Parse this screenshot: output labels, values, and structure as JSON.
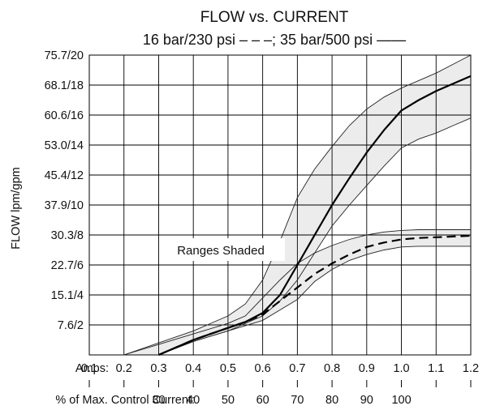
{
  "chart_data": {
    "type": "line",
    "title": "FLOW vs. CURRENT",
    "subtitle": "16 bar/230 psi – – –;  35 bar/500 psi ——",
    "ylabel": "FLOW lpm/gpm",
    "y_tick_labels": [
      "7.6/2",
      "15.1/4",
      "22.7/6",
      "30.3/8",
      "37.9/10",
      "45.4/12",
      "53.0/14",
      "60.6/16",
      "68.1/18",
      "75.7/20"
    ],
    "y_tick_values_gpm": [
      2,
      4,
      6,
      8,
      10,
      12,
      14,
      16,
      18,
      20
    ],
    "ylim": [
      0,
      20
    ],
    "xlim": [
      0.1,
      1.2
    ],
    "x_label_amps": "Amps:",
    "x_tick_labels_amps": [
      "0.1",
      "0.2",
      "0.3",
      "0.4",
      "0.5",
      "0.6",
      "0.7",
      "0.8",
      "0.9",
      "1.0",
      "1.1",
      "1.2"
    ],
    "x_tick_values_amps": [
      0.1,
      0.2,
      0.3,
      0.4,
      0.5,
      0.6,
      0.7,
      0.8,
      0.9,
      1.0,
      1.1,
      1.2
    ],
    "x_label_percent": "% of Max. Control Current:",
    "x_tick_labels_percent": [
      "30",
      "40",
      "50",
      "60",
      "70",
      "80",
      "90",
      "100"
    ],
    "x_tick_values_percent_amps": [
      0.3,
      0.4,
      0.5,
      0.6,
      0.7,
      0.8,
      0.9,
      1.0
    ],
    "grid": true,
    "annotation": "Ranges Shaded",
    "series": [
      {
        "name": "35 bar/500 psi",
        "line_style": "solid",
        "x": [
          0.3,
          0.35,
          0.4,
          0.45,
          0.5,
          0.55,
          0.6,
          0.65,
          0.7,
          0.75,
          0.8,
          0.85,
          0.9,
          0.95,
          1.0,
          1.05,
          1.1,
          1.15,
          1.2
        ],
        "y": [
          0,
          0.5,
          1.0,
          1.4,
          1.8,
          2.2,
          2.8,
          4.0,
          6.0,
          8.0,
          10.0,
          11.8,
          13.5,
          15.0,
          16.3,
          17.0,
          17.6,
          18.1,
          18.6
        ],
        "range_upper": {
          "x": [
            0.2,
            0.3,
            0.4,
            0.5,
            0.55,
            0.6,
            0.65,
            0.7,
            0.75,
            0.8,
            0.85,
            0.9,
            0.95,
            1.0,
            1.05,
            1.1,
            1.15,
            1.2
          ],
          "y": [
            0,
            0.8,
            1.6,
            2.6,
            3.4,
            5.0,
            7.6,
            10.5,
            12.4,
            13.9,
            15.3,
            16.4,
            17.2,
            17.8,
            18.3,
            18.8,
            19.4,
            20.0
          ]
        },
        "range_lower": {
          "x": [
            0.3,
            0.4,
            0.5,
            0.6,
            0.65,
            0.7,
            0.75,
            0.8,
            0.85,
            0.9,
            0.95,
            1.0,
            1.05,
            1.1,
            1.15,
            1.2
          ],
          "y": [
            0,
            0.9,
            1.6,
            2.6,
            3.6,
            5.0,
            6.8,
            8.6,
            10.0,
            11.3,
            12.6,
            13.8,
            14.4,
            14.8,
            15.3,
            15.8
          ]
        }
      },
      {
        "name": "16 bar/230 psi",
        "line_style": "dashed",
        "x": [
          0.3,
          0.35,
          0.4,
          0.45,
          0.5,
          0.55,
          0.6,
          0.65,
          0.7,
          0.75,
          0.8,
          0.85,
          0.9,
          0.95,
          1.0,
          1.05,
          1.1,
          1.15,
          1.2
        ],
        "y": [
          0,
          0.5,
          1.0,
          1.4,
          1.8,
          2.2,
          2.7,
          3.6,
          4.5,
          5.4,
          6.1,
          6.7,
          7.2,
          7.5,
          7.7,
          7.8,
          7.85,
          7.9,
          7.95
        ],
        "range_upper": {
          "x": [
            0.2,
            0.3,
            0.4,
            0.5,
            0.55,
            0.6,
            0.65,
            0.7,
            0.75,
            0.8,
            0.85,
            0.9,
            0.95,
            1.0,
            1.05,
            1.1,
            1.15,
            1.2
          ],
          "y": [
            0,
            0.7,
            1.4,
            2.1,
            2.6,
            3.8,
            5.0,
            6.1,
            6.8,
            7.3,
            7.7,
            8.0,
            8.2,
            8.3,
            8.35,
            8.35,
            8.35,
            8.35
          ]
        },
        "range_lower": {
          "x": [
            0.3,
            0.4,
            0.5,
            0.6,
            0.65,
            0.7,
            0.75,
            0.8,
            0.85,
            0.9,
            0.95,
            1.0,
            1.05,
            1.1,
            1.15,
            1.2
          ],
          "y": [
            0,
            0.9,
            1.6,
            2.3,
            3.0,
            3.7,
            4.9,
            5.7,
            6.3,
            6.7,
            7.0,
            7.2,
            7.25,
            7.25,
            7.25,
            7.25
          ]
        }
      }
    ]
  }
}
